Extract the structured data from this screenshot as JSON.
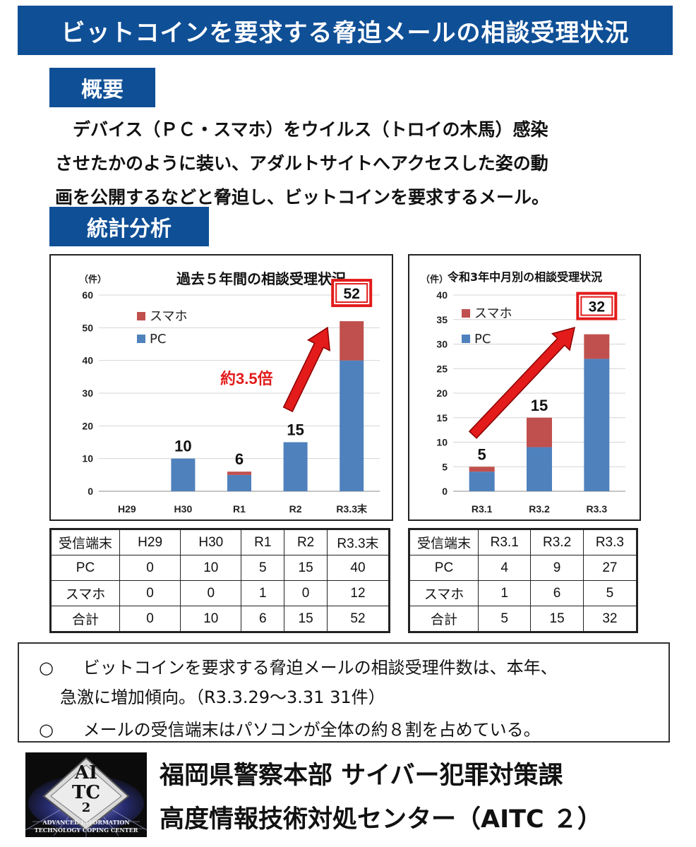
{
  "header": {
    "title": "ビットコインを要求する脅迫メールの相談受理状況"
  },
  "overview": {
    "label": "概要",
    "lines": [
      "　デバイス（ＰＣ・スマホ）をウイルス（トロイの木馬）感染",
      "させたかのように装い、アダルトサイトへアクセスした姿の動",
      "画を公開するなどと脅迫し、ビットコインを要求するメール。"
    ]
  },
  "stats": {
    "label": "統計分析"
  },
  "colors": {
    "brand": "#0f4f96",
    "pc": "#4f81bd",
    "smartphone": "#c0504d",
    "arrow": "#e31b1b"
  },
  "chart_data": [
    {
      "type": "bar",
      "stacked": true,
      "title": "過去５年間の相談受理状況",
      "unit": "（件）",
      "categories": [
        "H29",
        "H30",
        "R1",
        "R2",
        "R3.3末"
      ],
      "series": [
        {
          "name": "PC",
          "values": [
            0,
            10,
            5,
            15,
            40
          ]
        },
        {
          "name": "スマホ",
          "values": [
            0,
            0,
            1,
            0,
            12
          ]
        }
      ],
      "totals": [
        "",
        "10",
        "6",
        "15",
        "52"
      ],
      "highlight_total": "52",
      "annotation": "約3.5倍",
      "ylim": [
        0,
        60
      ],
      "yticks": [
        0,
        10,
        20,
        30,
        40,
        50,
        60
      ],
      "grid": true,
      "legend": "top-left"
    },
    {
      "type": "bar",
      "stacked": true,
      "title": "令和3年中月別の相談受理状況",
      "unit": "（件）",
      "categories": [
        "R3.1",
        "R3.2",
        "R3.3"
      ],
      "series": [
        {
          "name": "PC",
          "values": [
            4,
            9,
            27
          ]
        },
        {
          "name": "スマホ",
          "values": [
            1,
            6,
            5
          ]
        }
      ],
      "totals": [
        "5",
        "15",
        "32"
      ],
      "highlight_total": "32",
      "ylim": [
        0,
        40
      ],
      "yticks": [
        0,
        5,
        10,
        15,
        20,
        25,
        30,
        35,
        40
      ],
      "grid": true,
      "legend": "top-left"
    }
  ],
  "tables": [
    {
      "headers": [
        "受信端末",
        "H29",
        "H30",
        "R1",
        "R2",
        "R3.3末"
      ],
      "rows": [
        [
          "PC",
          "0",
          "10",
          "5",
          "15",
          "40"
        ],
        [
          "スマホ",
          "0",
          "0",
          "1",
          "0",
          "12"
        ],
        [
          "合計",
          "0",
          "10",
          "6",
          "15",
          "52"
        ]
      ]
    },
    {
      "headers": [
        "受信端末",
        "R3.1",
        "R3.2",
        "R3.3"
      ],
      "rows": [
        [
          "PC",
          "4",
          "9",
          "27"
        ],
        [
          "スマホ",
          "1",
          "6",
          "5"
        ],
        [
          "合計",
          "5",
          "15",
          "32"
        ]
      ]
    }
  ],
  "notes": {
    "bullet": "○",
    "items": [
      {
        "text": "ビットコインを要求する脅迫メールの相談受理件数は、本年、",
        "cont": "急激に増加傾向。（R3.3.29～3.31  31件）"
      },
      {
        "text": "メールの受信端末はパソコンが全体の約８割を占めている。"
      }
    ]
  },
  "footer": {
    "logo": {
      "main": "AI",
      "sub": "TC",
      "num": "2",
      "line1": "Advanced Information",
      "line2": "Technology Coping Center"
    },
    "org_line1": "福岡県警察本部 サイバー犯罪対策課",
    "org_line2": "高度情報技術対処センター（AITC ２）"
  }
}
